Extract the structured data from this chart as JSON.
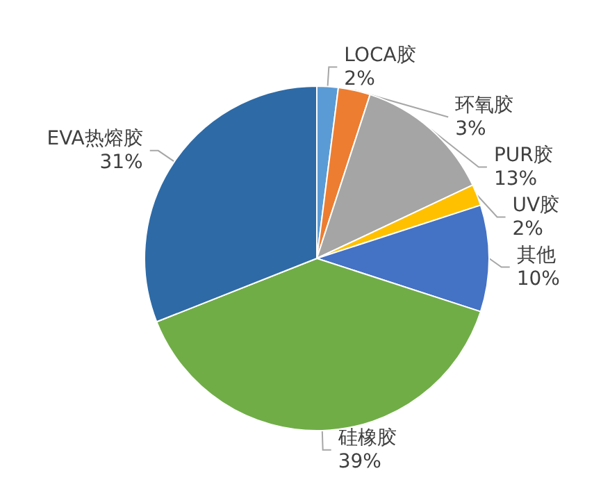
{
  "chart_data": {
    "type": "pie",
    "categories": [
      "LOCA胶",
      "环氧胶",
      "PUR胶",
      "UV胶",
      "其他",
      "硅橡胶",
      "EVA热熔胶"
    ],
    "values": [
      2,
      3,
      13,
      2,
      10,
      39,
      31
    ],
    "value_labels": [
      "2%",
      "3%",
      "13%",
      "2%",
      "10%",
      "39%",
      "31%"
    ],
    "colors": [
      "#5b9bd5",
      "#ed7d31",
      "#a5a5a5",
      "#ffc000",
      "#4472c4",
      "#70ad47",
      "#2e6aa6"
    ],
    "legend": false
  }
}
